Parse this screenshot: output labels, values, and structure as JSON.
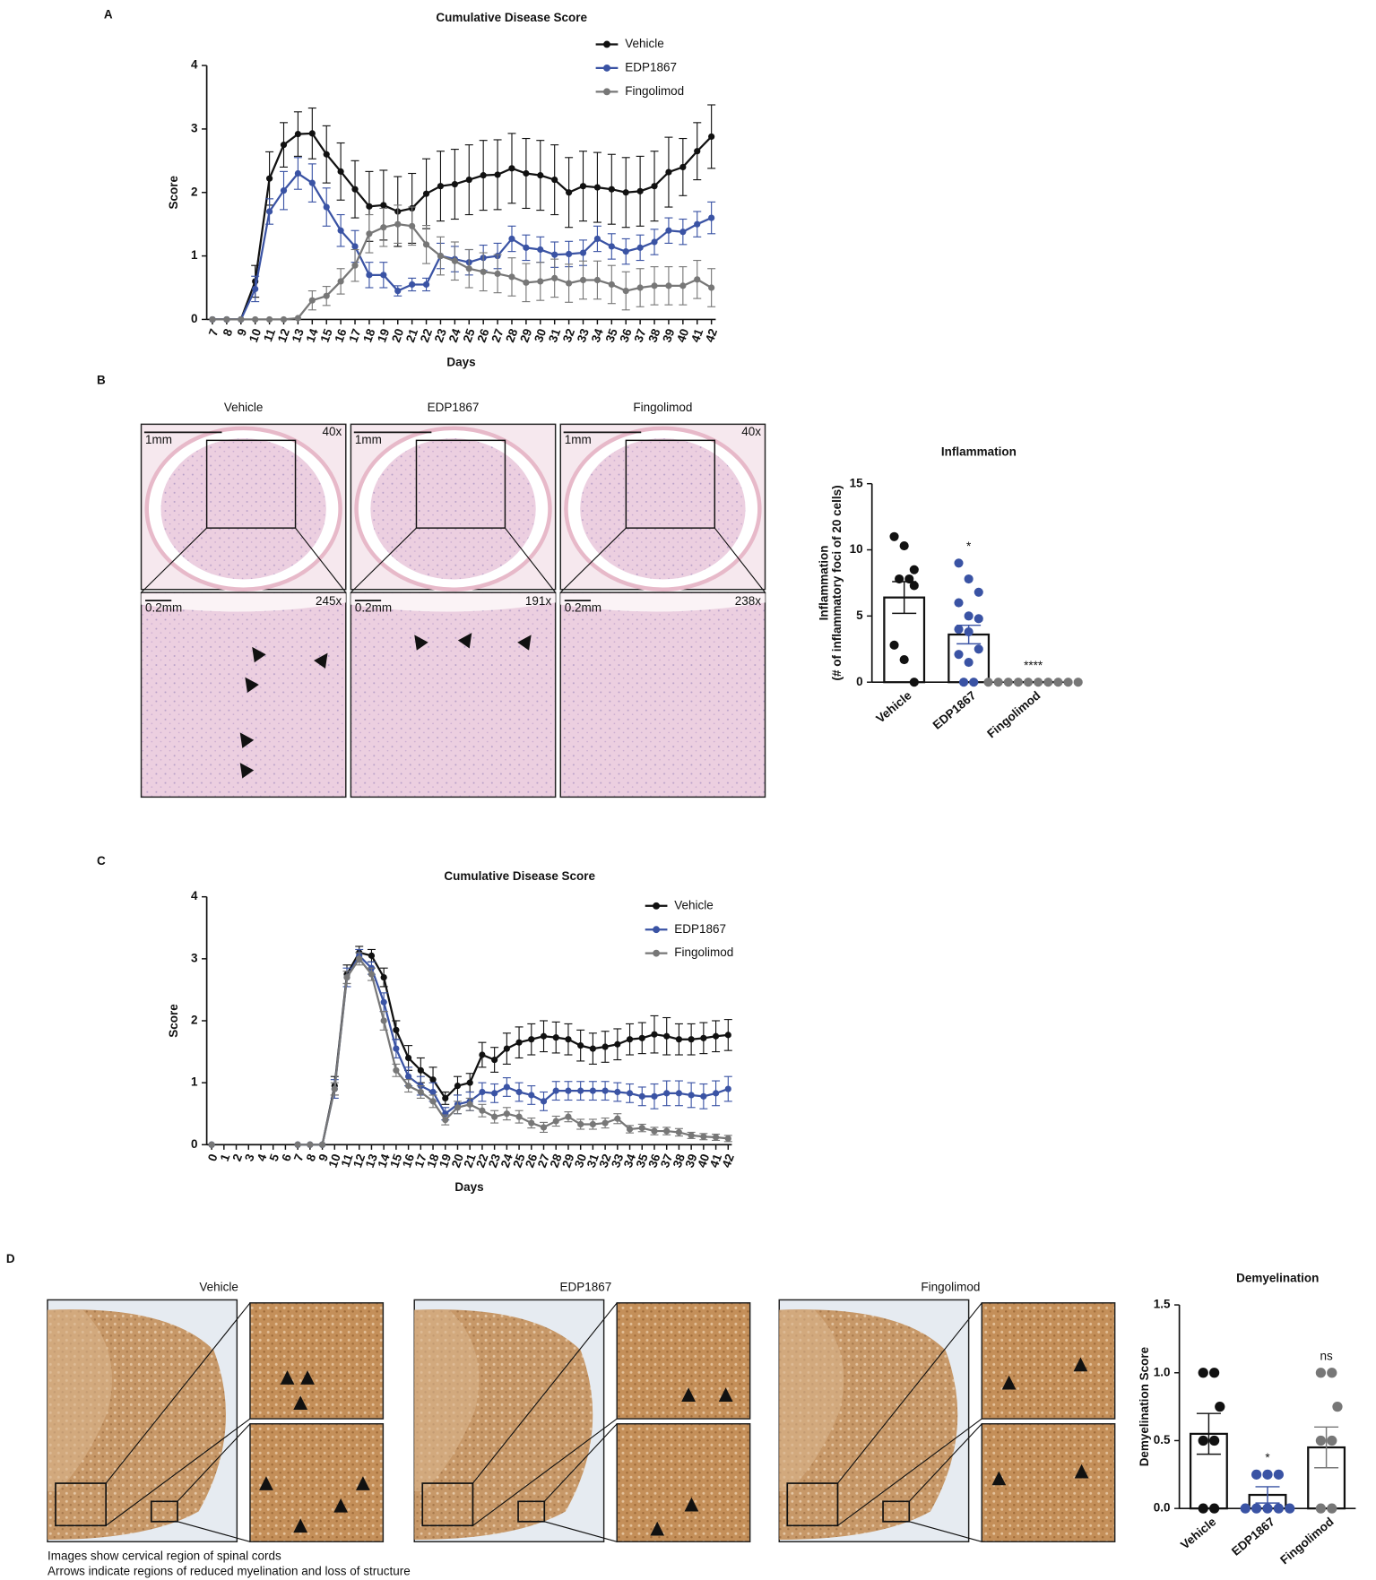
{
  "panel_labels": [
    "A",
    "B",
    "C",
    "D"
  ],
  "chart_data": [
    {
      "type": "line",
      "title": "Cumulative Disease Score",
      "xlabel": "Days",
      "ylabel": "Score",
      "x": [
        7,
        8,
        9,
        10,
        11,
        12,
        13,
        14,
        15,
        16,
        17,
        18,
        19,
        20,
        21,
        22,
        23,
        24,
        25,
        26,
        27,
        28,
        29,
        30,
        31,
        32,
        33,
        34,
        35,
        36,
        37,
        38,
        39,
        40,
        41,
        42
      ],
      "xlim": [
        6.6,
        42.3
      ],
      "xticks": [
        7,
        8,
        9,
        10,
        11,
        12,
        13,
        14,
        15,
        16,
        17,
        18,
        19,
        20,
        21,
        22,
        23,
        24,
        25,
        26,
        27,
        28,
        29,
        30,
        31,
        32,
        33,
        34,
        35,
        36,
        37,
        38,
        39,
        40,
        41,
        42
      ],
      "ylim": [
        0,
        4
      ],
      "yticks": [
        0,
        1,
        2,
        3,
        4
      ],
      "legend": "upper right",
      "series": [
        {
          "name": "Vehicle",
          "color": "#111111",
          "values": [
            0,
            0,
            0,
            0.6,
            2.22,
            2.75,
            2.92,
            2.93,
            2.6,
            2.33,
            2.05,
            1.78,
            1.8,
            1.7,
            1.75,
            1.98,
            2.1,
            2.13,
            2.2,
            2.27,
            2.28,
            2.38,
            2.3,
            2.27,
            2.2,
            2.0,
            2.1,
            2.08,
            2.05,
            2.0,
            2.02,
            2.1,
            2.32,
            2.4,
            2.65,
            2.88
          ],
          "errors": [
            0,
            0,
            0,
            0.25,
            0.42,
            0.35,
            0.35,
            0.4,
            0.45,
            0.45,
            0.45,
            0.55,
            0.55,
            0.55,
            0.55,
            0.55,
            0.55,
            0.55,
            0.55,
            0.55,
            0.55,
            0.55,
            0.55,
            0.55,
            0.55,
            0.55,
            0.55,
            0.55,
            0.55,
            0.55,
            0.55,
            0.55,
            0.55,
            0.45,
            0.45,
            0.5
          ]
        },
        {
          "name": "EDP1867",
          "color": "#3a53a4",
          "values": [
            0,
            0,
            0,
            0.48,
            1.7,
            2.03,
            2.3,
            2.15,
            1.77,
            1.4,
            1.15,
            0.7,
            0.7,
            0.45,
            0.55,
            0.55,
            1.0,
            0.95,
            0.9,
            0.97,
            1.0,
            1.27,
            1.13,
            1.1,
            1.02,
            1.03,
            1.05,
            1.27,
            1.15,
            1.07,
            1.13,
            1.22,
            1.4,
            1.38,
            1.5,
            1.6
          ],
          "errors": [
            0,
            0,
            0,
            0.2,
            0.2,
            0.3,
            0.25,
            0.3,
            0.3,
            0.25,
            0.25,
            0.2,
            0.2,
            0.08,
            0.1,
            0.1,
            0.2,
            0.2,
            0.2,
            0.2,
            0.2,
            0.2,
            0.2,
            0.2,
            0.2,
            0.2,
            0.2,
            0.2,
            0.2,
            0.2,
            0.2,
            0.2,
            0.2,
            0.2,
            0.2,
            0.25
          ]
        },
        {
          "name": "Fingolimod",
          "color": "#777777",
          "values": [
            0,
            0,
            0,
            0,
            0,
            0,
            0.02,
            0.3,
            0.37,
            0.6,
            0.85,
            1.35,
            1.45,
            1.5,
            1.47,
            1.18,
            1.0,
            0.92,
            0.8,
            0.75,
            0.72,
            0.67,
            0.58,
            0.6,
            0.65,
            0.57,
            0.62,
            0.62,
            0.55,
            0.45,
            0.5,
            0.53,
            0.53,
            0.53,
            0.63,
            0.5
          ],
          "errors": [
            0,
            0,
            0,
            0,
            0,
            0,
            0,
            0.15,
            0.15,
            0.2,
            0.25,
            0.3,
            0.3,
            0.3,
            0.3,
            0.3,
            0.3,
            0.3,
            0.3,
            0.3,
            0.3,
            0.3,
            0.3,
            0.3,
            0.3,
            0.3,
            0.3,
            0.3,
            0.3,
            0.3,
            0.3,
            0.3,
            0.3,
            0.3,
            0.3,
            0.3
          ]
        }
      ]
    },
    {
      "type": "dotbar",
      "title": "Inflammation",
      "ylabel": [
        "Inflammation",
        "(# of inflammatory foci of 20 cells)"
      ],
      "categories": [
        "Vehicle",
        "EDP1867",
        "Fingolimod"
      ],
      "colors": [
        "#111111",
        "#3a53a4",
        "#777777"
      ],
      "means": [
        6.4,
        3.6,
        0
      ],
      "errors": [
        1.2,
        0.7,
        0
      ],
      "points": [
        [
          11,
          10.3,
          8.5,
          7.8,
          7.8,
          7.3,
          2.8,
          1.7,
          0
        ],
        [
          9,
          7.8,
          6.8,
          6,
          5,
          4.8,
          4,
          3.8,
          2.5,
          2.1,
          1.5,
          0,
          0
        ],
        [
          0,
          0,
          0,
          0,
          0,
          0,
          0,
          0,
          0,
          0
        ]
      ],
      "annotations": [
        {
          "category": "EDP1867",
          "text": "*"
        },
        {
          "category": "Fingolimod",
          "text": "****"
        }
      ],
      "ylim": [
        0,
        15
      ],
      "yticks": [
        0,
        5,
        10,
        15
      ]
    },
    {
      "type": "line",
      "title": "Cumulative Disease Score",
      "xlabel": "Days",
      "ylabel": "Score",
      "x": [
        0,
        1,
        2,
        3,
        4,
        5,
        6,
        7,
        8,
        9,
        10,
        11,
        12,
        13,
        14,
        15,
        16,
        17,
        18,
        19,
        20,
        21,
        22,
        23,
        24,
        25,
        26,
        27,
        28,
        29,
        30,
        31,
        32,
        33,
        34,
        35,
        36,
        37,
        38,
        39,
        40,
        41,
        42
      ],
      "xlim": [
        -0.4,
        42.3
      ],
      "xticks": [
        0,
        1,
        2,
        3,
        4,
        5,
        6,
        7,
        8,
        9,
        10,
        11,
        12,
        13,
        14,
        15,
        16,
        17,
        18,
        19,
        20,
        21,
        22,
        23,
        24,
        25,
        26,
        27,
        28,
        29,
        30,
        31,
        32,
        33,
        34,
        35,
        36,
        37,
        38,
        39,
        40,
        41,
        42
      ],
      "ylim": [
        0,
        4
      ],
      "yticks": [
        0,
        1,
        2,
        3,
        4
      ],
      "legend": "upper right",
      "series": [
        {
          "name": "Vehicle",
          "color": "#111111",
          "values": [
            0,
            null,
            null,
            null,
            null,
            null,
            null,
            0,
            0,
            0,
            0.95,
            2.75,
            3.1,
            3.05,
            2.7,
            1.85,
            1.4,
            1.2,
            1.05,
            0.75,
            0.95,
            1.0,
            1.45,
            1.37,
            1.55,
            1.65,
            1.7,
            1.75,
            1.73,
            1.7,
            1.6,
            1.55,
            1.58,
            1.62,
            1.7,
            1.72,
            1.78,
            1.75,
            1.7,
            1.7,
            1.72,
            1.75,
            1.77
          ],
          "errors": [
            0,
            null,
            null,
            null,
            null,
            null,
            null,
            0,
            0,
            0,
            0.15,
            0.15,
            0.1,
            0.1,
            0.15,
            0.15,
            0.2,
            0.2,
            0.2,
            0.1,
            0.15,
            0.15,
            0.2,
            0.2,
            0.25,
            0.25,
            0.25,
            0.25,
            0.25,
            0.25,
            0.25,
            0.25,
            0.25,
            0.25,
            0.25,
            0.25,
            0.3,
            0.3,
            0.25,
            0.25,
            0.25,
            0.25,
            0.25
          ]
        },
        {
          "name": "EDP1867",
          "color": "#3a53a4",
          "values": [
            0,
            null,
            null,
            null,
            null,
            null,
            null,
            0,
            0,
            0,
            0.9,
            2.7,
            3.05,
            2.85,
            2.3,
            1.55,
            1.1,
            0.95,
            0.85,
            0.5,
            0.65,
            0.7,
            0.85,
            0.83,
            0.93,
            0.85,
            0.8,
            0.7,
            0.87,
            0.87,
            0.87,
            0.87,
            0.87,
            0.85,
            0.83,
            0.78,
            0.78,
            0.83,
            0.83,
            0.8,
            0.78,
            0.83,
            0.9
          ],
          "errors": [
            0,
            null,
            null,
            null,
            null,
            null,
            null,
            0,
            0,
            0,
            0.15,
            0.15,
            0.1,
            0.1,
            0.15,
            0.15,
            0.15,
            0.15,
            0.15,
            0.1,
            0.15,
            0.15,
            0.15,
            0.15,
            0.15,
            0.15,
            0.15,
            0.15,
            0.15,
            0.15,
            0.15,
            0.15,
            0.15,
            0.15,
            0.15,
            0.15,
            0.2,
            0.2,
            0.2,
            0.2,
            0.2,
            0.2,
            0.2
          ]
        },
        {
          "name": "Fingolimod",
          "color": "#777777",
          "values": [
            0,
            null,
            null,
            null,
            null,
            null,
            null,
            0,
            0,
            0,
            0.9,
            2.7,
            3.0,
            2.75,
            2.0,
            1.2,
            0.95,
            0.85,
            0.7,
            0.4,
            0.6,
            0.65,
            0.55,
            0.45,
            0.5,
            0.45,
            0.35,
            0.28,
            0.38,
            0.45,
            0.33,
            0.33,
            0.35,
            0.42,
            0.25,
            0.27,
            0.22,
            0.22,
            0.2,
            0.15,
            0.13,
            0.12,
            0.1
          ],
          "errors": [
            0,
            null,
            null,
            null,
            null,
            null,
            null,
            0,
            0,
            0,
            0.1,
            0.1,
            0.1,
            0.1,
            0.15,
            0.1,
            0.1,
            0.1,
            0.1,
            0.08,
            0.1,
            0.1,
            0.1,
            0.1,
            0.1,
            0.1,
            0.08,
            0.08,
            0.08,
            0.08,
            0.08,
            0.08,
            0.08,
            0.08,
            0.06,
            0.06,
            0.06,
            0.06,
            0.06,
            0.05,
            0.05,
            0.05,
            0.05
          ]
        }
      ]
    },
    {
      "type": "dotbar",
      "title": "Demyelination",
      "ylabel": [
        "Demyelination Score"
      ],
      "categories": [
        "Vehicle",
        "EDP1867",
        "Fingolimod"
      ],
      "colors": [
        "#111111",
        "#3a53a4",
        "#777777"
      ],
      "means": [
        0.55,
        0.1,
        0.45
      ],
      "errors": [
        0.15,
        0.06,
        0.15
      ],
      "points": [
        [
          1,
          1,
          0.75,
          0.5,
          0.5,
          0,
          0
        ],
        [
          0.25,
          0.25,
          0.25,
          0,
          0,
          0,
          0,
          0
        ],
        [
          1,
          1,
          0.75,
          0.5,
          0.5,
          0,
          0
        ]
      ],
      "annotations": [
        {
          "category": "EDP1867",
          "text": "*"
        },
        {
          "category": "Fingolimod",
          "text": "ns"
        }
      ],
      "ylim": [
        0,
        1.5
      ],
      "yticks": [
        {
          "value": 0,
          "label": "0.0"
        },
        0.5,
        {
          "value": 1,
          "label": "1.0"
        },
        1.5
      ]
    }
  ],
  "histology_b": {
    "panels": [
      {
        "title": "Vehicle",
        "top_scale": "1mm",
        "top_mag": "40x",
        "bottom_scale": "0.2mm",
        "bottom_mag": "245x"
      },
      {
        "title": "EDP1867",
        "top_scale": "1mm",
        "bottom_scale": "0.2mm",
        "bottom_mag": "191x"
      },
      {
        "title": "Fingolimod",
        "top_scale": "1mm",
        "top_mag": "40x",
        "bottom_scale": "0.2mm",
        "bottom_mag": "238x"
      }
    ]
  },
  "histology_d": {
    "titles": [
      "Vehicle",
      "EDP1867",
      "Fingolimod"
    ]
  },
  "footnotes": [
    "Images show cervical region of spinal cords",
    "Arrows indicate regions of reduced myelination and loss of structure"
  ]
}
